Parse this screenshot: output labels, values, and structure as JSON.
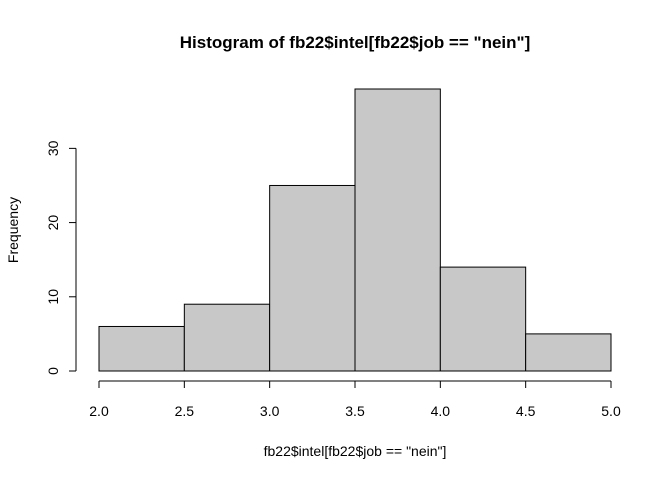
{
  "chart_data": {
    "type": "bar",
    "title": "Histogram of fb22$intel[fb22$job == \"nein\"]",
    "xlabel": "fb22$intel[fb22$job == \"nein\"]",
    "ylabel": "Frequency",
    "bins": [
      {
        "from": 2.0,
        "to": 2.5,
        "count": 6
      },
      {
        "from": 2.5,
        "to": 3.0,
        "count": 9
      },
      {
        "from": 3.0,
        "to": 3.5,
        "count": 25
      },
      {
        "from": 3.5,
        "to": 4.0,
        "count": 38
      },
      {
        "from": 4.0,
        "to": 4.5,
        "count": 14
      },
      {
        "from": 4.5,
        "to": 5.0,
        "count": 5
      }
    ],
    "xlim": [
      2.0,
      5.0
    ],
    "ylim": [
      0,
      38
    ],
    "x_ticks": [
      "2.0",
      "2.5",
      "3.0",
      "3.5",
      "4.0",
      "4.5",
      "5.0"
    ],
    "y_ticks": [
      "0",
      "10",
      "20",
      "30"
    ],
    "bar_color": "#c8c8c8",
    "grid": false
  }
}
